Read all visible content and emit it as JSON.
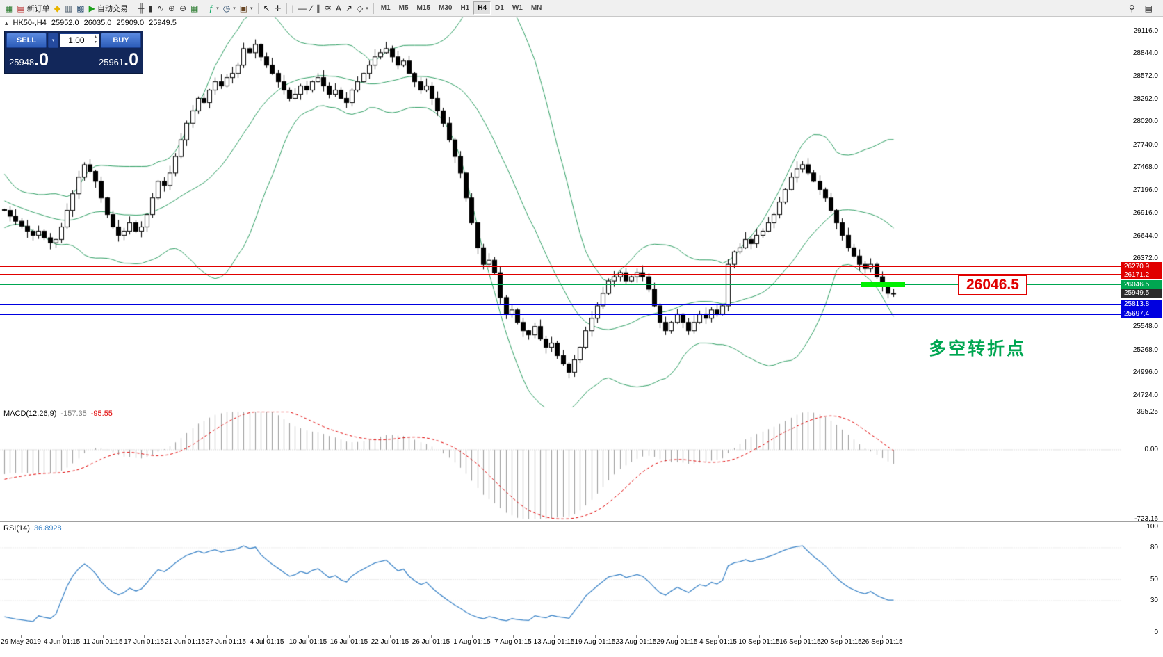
{
  "toolbar": {
    "caret_glyph": "▾",
    "items": [
      {
        "icon": "chart-window-icon",
        "glyph": "▦",
        "color": "#2e7d32"
      },
      {
        "icon": "new-order-icon",
        "glyph": "▤",
        "label": "新订单",
        "name": "new-order-button",
        "color": "#b33"
      },
      {
        "icon": "metaquotes-icon",
        "glyph": "◆",
        "color": "#e8b400"
      },
      {
        "icon": "print-icon",
        "glyph": "▥",
        "color": "#456"
      },
      {
        "icon": "market-watch-icon",
        "glyph": "▩",
        "color": "#357"
      },
      {
        "icon": "autotrading-play-icon",
        "glyph": "▶",
        "label": "自动交易",
        "name": "autotrading-button",
        "color": "#1fa11f"
      },
      {
        "sep": true
      },
      {
        "icon": "bars-chart-type-icon",
        "glyph": "╫",
        "color": "#333"
      },
      {
        "icon": "candlestick-chart-type-icon",
        "glyph": "▮",
        "color": "#333"
      },
      {
        "icon": "line-chart-type-icon",
        "glyph": "∿",
        "color": "#333"
      },
      {
        "icon": "zoom-in-icon",
        "glyph": "⊕",
        "color": "#333"
      },
      {
        "icon": "zoom-out-icon",
        "glyph": "⊖",
        "color": "#333"
      },
      {
        "icon": "tile-windows-icon",
        "glyph": "▦",
        "color": "#2e7d32"
      },
      {
        "sep": true
      },
      {
        "icon": "indicators-icon",
        "glyph": "ƒ",
        "color": "#1a6",
        "caret": true
      },
      {
        "icon": "period-icon",
        "glyph": "◷",
        "color": "#246",
        "caret": true
      },
      {
        "icon": "template-icon",
        "glyph": "▣",
        "color": "#642",
        "caret": true
      },
      {
        "sep": true
      },
      {
        "icon": "cursor-icon",
        "glyph": "↖",
        "color": "#222"
      },
      {
        "icon": "crosshair-icon",
        "glyph": "✛",
        "color": "#222"
      },
      {
        "sep": true
      },
      {
        "icon": "vertical-line-icon",
        "glyph": "|",
        "color": "#222"
      },
      {
        "icon": "horizontal-line-icon",
        "glyph": "—",
        "color": "#222"
      },
      {
        "icon": "trendline-icon",
        "glyph": "∕",
        "color": "#222"
      },
      {
        "icon": "channel-icon",
        "glyph": "∥",
        "color": "#222"
      },
      {
        "icon": "fibonacci-icon",
        "glyph": "≋",
        "color": "#222"
      },
      {
        "icon": "text-tool-icon",
        "glyph": "A",
        "color": "#222"
      },
      {
        "icon": "arrow-tool-icon",
        "glyph": "↗",
        "color": "#222"
      },
      {
        "icon": "shapes-icon",
        "glyph": "◇",
        "color": "#222",
        "caret": true
      },
      {
        "sep": true
      }
    ],
    "timeframes": [
      "M1",
      "M5",
      "M15",
      "M30",
      "H1",
      "H4",
      "D1",
      "W1",
      "MN"
    ],
    "active_timeframe": "H4",
    "right_icons": [
      {
        "icon": "search-icon",
        "glyph": "⚲"
      },
      {
        "icon": "chart-properties-icon",
        "glyph": "▤"
      }
    ]
  },
  "chart_header": {
    "collapse_icon": "▴",
    "symbol": "HK50-,H4",
    "open": "25952.0",
    "high": "26035.0",
    "low": "25909.0",
    "close": "25949.5"
  },
  "one_click": {
    "sell_label": "SELL",
    "buy_label": "BUY",
    "volume": "1.00",
    "volume_caret": "▾",
    "spinner_up": "▴",
    "spinner_down": "▾",
    "sell_price_main": "25948",
    "sell_price_frac": ".0",
    "buy_price_main": "25961",
    "buy_price_frac": ".0"
  },
  "levels": [
    {
      "label": "26270.9",
      "price": 26270.9,
      "color": "#e00000",
      "thickness": 2,
      "style": "solid"
    },
    {
      "label": "26171.2",
      "price": 26171.2,
      "color": "#e00000",
      "thickness": 2,
      "style": "solid"
    },
    {
      "label": "26046.5",
      "price": 26046.5,
      "color": "#00a651",
      "thickness": 1,
      "style": "solid"
    },
    {
      "label": "25949.5",
      "price": 25949.5,
      "color": "#2b2b2b",
      "thickness": 1,
      "style": "dashed",
      "current": true
    },
    {
      "label": "25813.8",
      "price": 25813.8,
      "color": "#0000e0",
      "thickness": 2,
      "style": "solid"
    },
    {
      "label": "25697.4",
      "price": 25697.4,
      "color": "#0000e0",
      "thickness": 2,
      "style": "solid"
    }
  ],
  "annotations": {
    "price_callout": "26046.5",
    "callout_color": "#e00000",
    "turning_point_text": "多空转折点",
    "turning_color": "#00a651",
    "highlight": {
      "price": 26046.5,
      "color": "#00ef00"
    }
  },
  "indicators": {
    "macd": {
      "name": "MACD(12,26,9)",
      "main_value": "-157.35",
      "signal_value": "-95.55",
      "scale": [
        "395.25",
        "0.00",
        "-723.16"
      ]
    },
    "rsi": {
      "name": "RSI(14)",
      "value": "36.8928",
      "scale": [
        "100",
        "80",
        "50",
        "30",
        "0"
      ]
    }
  },
  "axes": {
    "price_labels": [
      29116,
      28844,
      28572,
      28292,
      28020,
      27740,
      27468,
      27196,
      26916,
      26644,
      26372,
      25548,
      25268,
      24996,
      24724
    ],
    "date_labels": [
      "29 May 2019",
      "4 Jun 01:15",
      "11 Jun 01:15",
      "17 Jun 01:15",
      "21 Jun 01:15",
      "27 Jun 01:15",
      "4 Jul 01:15",
      "10 Jul 01:15",
      "16 Jul 01:15",
      "22 Jul 01:15",
      "26 Jul 01:15",
      "1 Aug 01:15",
      "7 Aug 01:15",
      "13 Aug 01:15",
      "19 Aug 01:15",
      "23 Aug 01:15",
      "29 Aug 01:15",
      "4 Sep 01:15",
      "10 Sep 01:15",
      "16 Sep 01:15",
      "20 Sep 01:15",
      "26 Sep 01:15"
    ]
  },
  "chart_data": {
    "type": "candlestick",
    "symbol": "HK50",
    "timeframe": "H4",
    "last_bar_ohlc": {
      "open": 25952.0,
      "high": 26035.0,
      "low": 25909.0,
      "close": 25949.5
    },
    "price_axis_range": [
      24580,
      29280
    ],
    "warmup_closes": [
      28400,
      28300,
      28150,
      28000,
      27900,
      27800,
      27650,
      27500,
      27400,
      27300,
      27200,
      27150,
      27100,
      27050,
      27000,
      26950,
      27000,
      27050,
      26980,
      26950,
      26920,
      26900,
      26950,
      27000,
      26980,
      26960
    ],
    "closes": [
      26950,
      26880,
      26820,
      26760,
      26700,
      26650,
      26700,
      26620,
      26560,
      26600,
      26750,
      26950,
      27150,
      27350,
      27500,
      27420,
      27300,
      27100,
      26900,
      26750,
      26650,
      26700,
      26800,
      26700,
      26750,
      26900,
      27100,
      27300,
      27250,
      27400,
      27600,
      27800,
      28000,
      28150,
      28300,
      28250,
      28400,
      28500,
      28450,
      28550,
      28600,
      28700,
      28900,
      28850,
      28950,
      28800,
      28700,
      28600,
      28500,
      28400,
      28300,
      28350,
      28450,
      28400,
      28500,
      28550,
      28450,
      28350,
      28400,
      28300,
      28250,
      28400,
      28500,
      28600,
      28700,
      28800,
      28850,
      28900,
      28800,
      28700,
      28750,
      28600,
      28500,
      28400,
      28450,
      28300,
      28150,
      28000,
      27800,
      27600,
      27400,
      27100,
      26800,
      26500,
      26300,
      26350,
      26200,
      25900,
      25700,
      25750,
      25600,
      25500,
      25450,
      25550,
      25400,
      25300,
      25350,
      25200,
      25100,
      25000,
      25150,
      25300,
      25500,
      25650,
      25800,
      25950,
      26100,
      26150,
      26200,
      26100,
      26150,
      26200,
      26150,
      26000,
      25800,
      25600,
      25500,
      25600,
      25700,
      25600,
      25500,
      25600,
      25700,
      25650,
      25750,
      25700,
      25800,
      26300,
      26450,
      26500,
      26600,
      26550,
      26650,
      26700,
      26800,
      26900,
      27050,
      27200,
      27350,
      27450,
      27500,
      27400,
      27300,
      27200,
      27100,
      26950,
      26800,
      26650,
      26500,
      26400,
      26300,
      26250,
      26300,
      26150,
      26050,
      25950,
      25949.5
    ],
    "overlays": {
      "bollinger": {
        "period": 20,
        "deviation": 2,
        "color": "#2e9e63"
      }
    },
    "macd": {
      "fast": 12,
      "slow": 26,
      "signal": 9,
      "range": [
        -723.16,
        395.25
      ],
      "histogram_color": "#9b9b9b",
      "signal_color": "#e00000"
    },
    "rsi": {
      "period": 14,
      "range": [
        0,
        100
      ],
      "color": "#3d85c8",
      "level_lines": [
        80,
        50,
        30
      ]
    },
    "candle_up_color": "#ffffff",
    "candle_down_color": "#000000",
    "candle_border": "#000000"
  }
}
